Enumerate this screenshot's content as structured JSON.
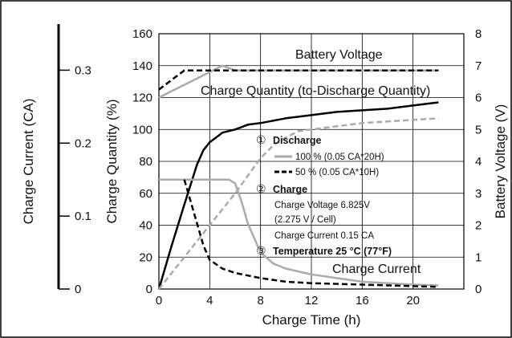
{
  "chart_data": {
    "type": "line",
    "xlabel": "Charge Time (h)",
    "x_ticks": [
      0,
      4,
      8,
      12,
      16,
      20
    ],
    "xlim": [
      0,
      24
    ],
    "axes": {
      "quantity": {
        "label": "Charge Quantity (%)",
        "ticks": [
          0,
          20,
          40,
          60,
          80,
          100,
          120,
          140,
          160
        ],
        "range": [
          0,
          160
        ]
      },
      "current": {
        "label": "Charge Current (CA)",
        "ticks": [
          "0",
          "0.1",
          "0.2",
          "0.3"
        ],
        "range": [
          0,
          0.35
        ]
      },
      "voltage": {
        "label": "Battery Voltage (V)",
        "ticks": [
          0,
          1,
          2,
          3,
          4,
          5,
          6,
          7,
          8
        ],
        "range": [
          0,
          8
        ]
      }
    },
    "annotations": {
      "voltage": "Battery Voltage",
      "quantity": "Charge Quantity (to-Discharge Quantity)",
      "current": "Charge Current"
    },
    "legend": {
      "n1": "①",
      "discharge_title": "Discharge",
      "item_100": "100 % (0.05 CA*20H)",
      "item_50": "50 % (0.05 CA*10H)",
      "n2": "②",
      "charge_title": "Charge",
      "charge_line1": "Charge Voltage 6.825V",
      "charge_line2": "(2.275 V / Cell)",
      "charge_line3": "Charge Current 0.15 CA",
      "n3": "③",
      "temperature": "Temperature 25 °C (77°F)"
    },
    "series": [
      {
        "name": "100 %",
        "group": "voltage",
        "style": "solid-gray",
        "x": [
          0,
          1,
          2,
          3,
          4,
          5,
          6,
          22
        ],
        "y": [
          6.0,
          6.2,
          6.4,
          6.6,
          6.8,
          7.0,
          6.85,
          6.85
        ]
      },
      {
        "name": "50 %",
        "group": "voltage",
        "style": "dashed-black",
        "x": [
          0,
          1,
          2,
          4,
          6,
          22
        ],
        "y": [
          6.25,
          6.55,
          6.85,
          6.85,
          6.85,
          6.85
        ]
      },
      {
        "name": "100 %",
        "group": "quantity",
        "style": "solid-black",
        "x": [
          0,
          1,
          2,
          3,
          3.5,
          4,
          5,
          6,
          7,
          8,
          10,
          12,
          14,
          16,
          18,
          20,
          22
        ],
        "y": [
          0,
          27,
          53,
          78,
          87,
          92,
          98,
          100,
          103,
          104,
          107,
          109,
          111,
          112,
          113,
          115,
          117
        ]
      },
      {
        "name": "50 %",
        "group": "quantity",
        "style": "dashed-gray",
        "x": [
          0,
          2,
          4,
          6,
          7,
          8,
          9,
          10,
          11,
          12,
          14,
          16,
          18,
          20,
          22
        ],
        "y": [
          0,
          20,
          40,
          60,
          71,
          82,
          90,
          95,
          99,
          100,
          102,
          104,
          105,
          106,
          107
        ]
      },
      {
        "name": "100 %",
        "group": "current",
        "style": "solid-gray",
        "x": [
          0,
          2,
          4,
          5.5,
          6,
          6.5,
          7,
          8,
          9,
          10,
          12,
          14,
          16,
          18,
          20,
          22
        ],
        "y": [
          0.15,
          0.15,
          0.15,
          0.15,
          0.145,
          0.12,
          0.09,
          0.05,
          0.035,
          0.028,
          0.02,
          0.015,
          0.01,
          0.008,
          0.006,
          0.005
        ]
      },
      {
        "name": "50 %",
        "group": "current",
        "style": "dashed-black",
        "x": [
          2,
          2.5,
          3,
          3.5,
          4,
          5,
          6,
          8,
          10,
          12,
          16,
          20,
          22
        ],
        "y": [
          0.15,
          0.12,
          0.09,
          0.06,
          0.04,
          0.028,
          0.022,
          0.015,
          0.01,
          0.008,
          0.006,
          0.004,
          0.003
        ]
      }
    ]
  }
}
